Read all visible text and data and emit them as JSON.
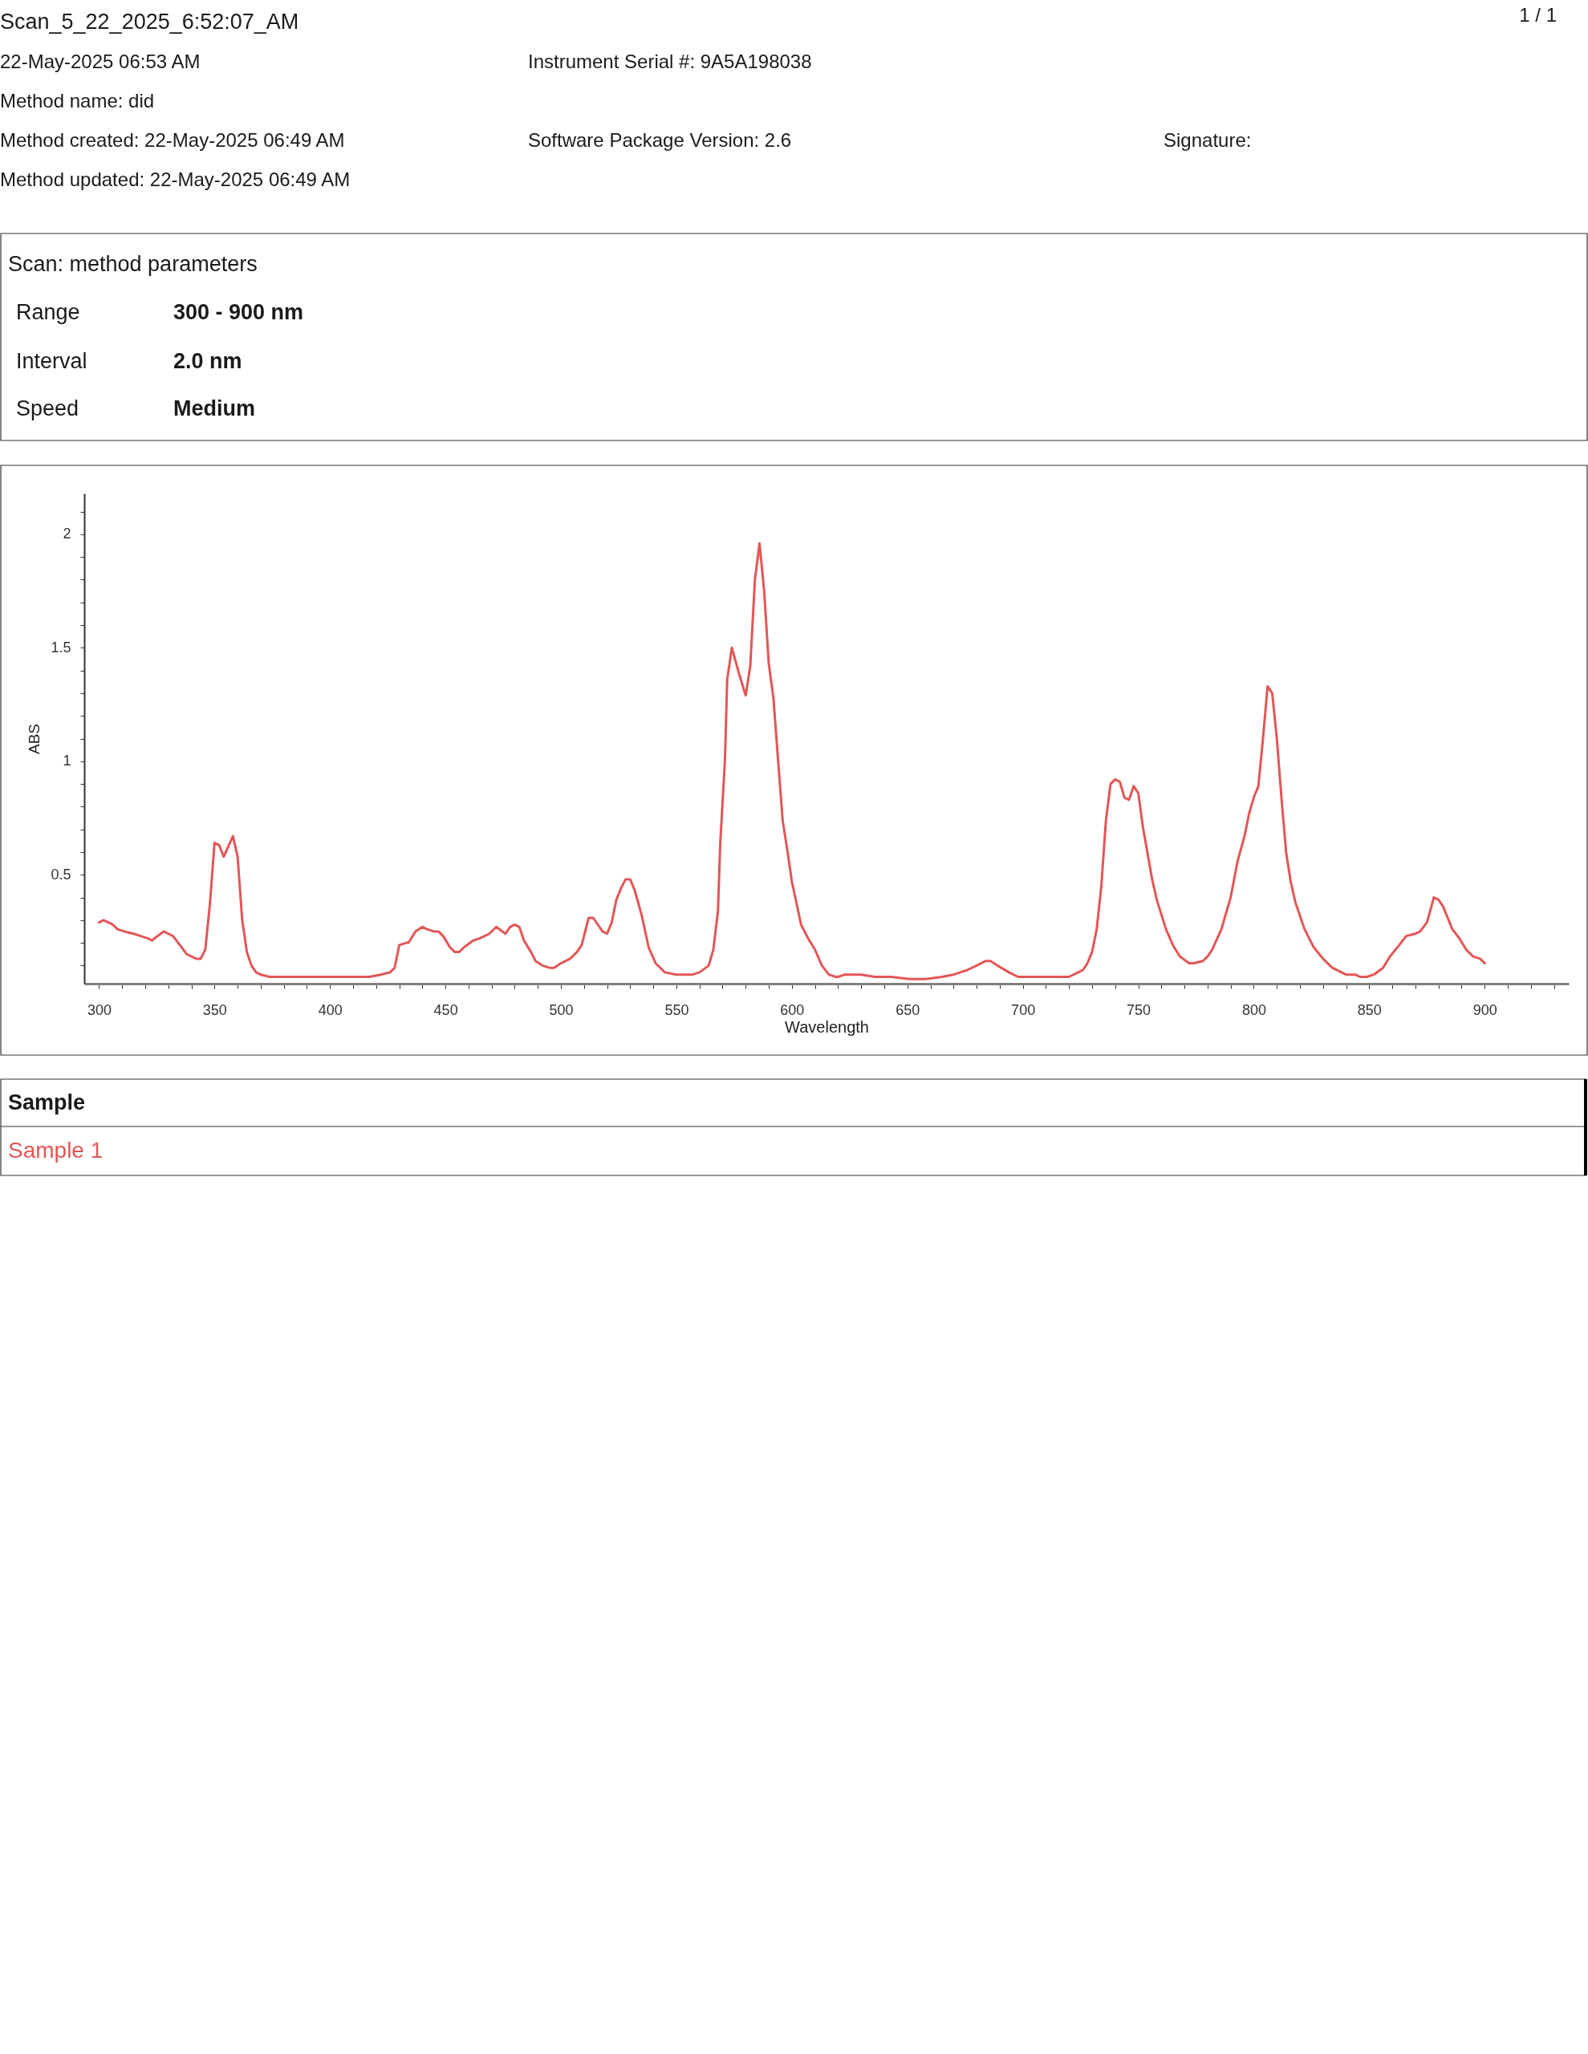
{
  "chart_data": {
    "type": "line",
    "title": "Scan_5_22_2025_6:52:07_AM",
    "xlabel": "Wavelength",
    "ylabel": "ABS",
    "legend_title": "Sample",
    "legend": "bottom",
    "annotations": [
      "1 / 1",
      "22-May-2025 06:53 AM",
      "Method name: did",
      "Method created: 22-May-2025 06:49 AM",
      "Method updated: 22-May-2025 06:49 AM",
      "Instrument Serial #: 9A5A198038",
      "Software Package Version: 2.6",
      "Signature:",
      "Scan: method parameters",
      "Range",
      "300 - 900 nm",
      "Interval",
      "2.0 nm",
      "Speed",
      "Medium"
    ],
    "x": [
      300,
      302,
      306,
      308,
      311,
      315,
      318,
      321,
      323,
      324,
      328,
      330,
      332,
      335,
      338,
      342,
      344,
      346,
      348,
      350,
      352,
      354,
      358,
      360,
      362,
      364,
      366,
      368,
      370,
      374,
      383,
      386,
      394,
      404,
      410,
      417,
      422,
      426,
      428,
      430,
      433,
      434,
      437,
      440,
      442,
      445,
      447,
      449,
      452,
      454,
      456,
      458,
      462,
      465,
      469,
      472,
      476,
      478,
      480,
      482,
      484,
      487,
      489,
      492,
      495,
      497,
      500,
      504,
      507,
      509,
      512,
      514,
      518,
      520,
      522,
      524,
      526,
      528,
      530,
      532,
      535,
      538,
      541,
      545,
      550,
      557,
      560,
      564,
      566,
      568,
      569,
      571,
      572,
      574,
      577,
      580,
      582,
      584,
      586,
      588,
      590,
      592,
      596,
      598,
      600,
      604,
      607,
      610,
      613,
      616,
      619,
      620,
      623,
      630,
      636,
      643,
      651,
      658,
      665,
      670,
      676,
      680,
      684,
      686,
      689,
      694,
      698,
      703,
      715,
      720,
      724,
      726,
      728,
      730,
      732,
      734,
      736,
      738,
      740,
      742,
      744,
      746,
      748,
      750,
      752,
      756,
      758,
      762,
      765,
      768,
      772,
      774,
      778,
      780,
      782,
      786,
      790,
      793,
      796,
      798,
      800,
      802,
      804,
      806,
      808,
      810,
      812,
      814,
      816,
      818,
      822,
      826,
      830,
      834,
      838,
      840,
      842,
      844,
      846,
      849,
      852,
      856,
      859,
      863,
      866,
      870,
      872,
      875,
      878,
      880,
      882,
      886,
      889,
      892,
      895,
      898,
      900
    ],
    "series": [
      {
        "name": "Sample 1",
        "color": "#e35656",
        "values": [
          0.29,
          0.3,
          0.28,
          0.26,
          0.25,
          0.24,
          0.23,
          0.22,
          0.21,
          0.22,
          0.25,
          0.24,
          0.23,
          0.19,
          0.15,
          0.13,
          0.13,
          0.17,
          0.37,
          0.64,
          0.63,
          0.58,
          0.67,
          0.58,
          0.3,
          0.16,
          0.1,
          0.07,
          0.06,
          0.05,
          0.05,
          0.05,
          0.05,
          0.05,
          0.05,
          0.05,
          0.06,
          0.07,
          0.09,
          0.19,
          0.2,
          0.2,
          0.25,
          0.27,
          0.26,
          0.25,
          0.25,
          0.23,
          0.18,
          0.16,
          0.16,
          0.18,
          0.21,
          0.22,
          0.24,
          0.27,
          0.24,
          0.27,
          0.28,
          0.27,
          0.21,
          0.16,
          0.12,
          0.1,
          0.09,
          0.09,
          0.11,
          0.13,
          0.16,
          0.19,
          0.31,
          0.31,
          0.25,
          0.24,
          0.29,
          0.39,
          0.44,
          0.48,
          0.48,
          0.43,
          0.32,
          0.18,
          0.11,
          0.07,
          0.06,
          0.06,
          0.07,
          0.1,
          0.17,
          0.34,
          0.64,
          1.0,
          1.36,
          1.5,
          1.39,
          1.29,
          1.42,
          1.8,
          1.96,
          1.75,
          1.43,
          1.28,
          0.74,
          0.61,
          0.47,
          0.28,
          0.22,
          0.17,
          0.1,
          0.06,
          0.05,
          0.05,
          0.06,
          0.06,
          0.05,
          0.05,
          0.04,
          0.04,
          0.05,
          0.06,
          0.08,
          0.1,
          0.12,
          0.12,
          0.1,
          0.07,
          0.05,
          0.05,
          0.05,
          0.05,
          0.07,
          0.08,
          0.11,
          0.16,
          0.26,
          0.45,
          0.74,
          0.9,
          0.92,
          0.91,
          0.84,
          0.83,
          0.89,
          0.86,
          0.71,
          0.48,
          0.39,
          0.26,
          0.19,
          0.14,
          0.11,
          0.11,
          0.12,
          0.14,
          0.17,
          0.26,
          0.4,
          0.56,
          0.67,
          0.77,
          0.84,
          0.89,
          1.1,
          1.33,
          1.3,
          1.1,
          0.84,
          0.6,
          0.47,
          0.38,
          0.26,
          0.18,
          0.13,
          0.09,
          0.07,
          0.06,
          0.06,
          0.06,
          0.05,
          0.05,
          0.06,
          0.09,
          0.14,
          0.19,
          0.23,
          0.24,
          0.25,
          0.29,
          0.4,
          0.39,
          0.36,
          0.26,
          0.22,
          0.17,
          0.14,
          0.13,
          0.11
        ]
      }
    ],
    "xlim": [
      293.6,
      936.4
    ],
    "ylim": [
      0.02,
      2.18
    ],
    "xticks": [
      300,
      {
        "value": 310,
        "label": null
      },
      {
        "value": 320,
        "label": null
      },
      {
        "value": 330,
        "label": null
      },
      {
        "value": 340,
        "label": null
      },
      350,
      {
        "value": 360,
        "label": null
      },
      {
        "value": 370,
        "label": null
      },
      {
        "value": 380,
        "label": null
      },
      {
        "value": 390,
        "label": null
      },
      400,
      {
        "value": 410,
        "label": null
      },
      {
        "value": 420,
        "label": null
      },
      {
        "value": 430,
        "label": null
      },
      {
        "value": 440,
        "label": null
      },
      450,
      {
        "value": 460,
        "label": null
      },
      {
        "value": 470,
        "label": null
      },
      {
        "value": 480,
        "label": null
      },
      {
        "value": 490,
        "label": null
      },
      500,
      {
        "value": 510,
        "label": null
      },
      {
        "value": 520,
        "label": null
      },
      {
        "value": 530,
        "label": null
      },
      {
        "value": 540,
        "label": null
      },
      550,
      {
        "value": 560,
        "label": null
      },
      {
        "value": 570,
        "label": null
      },
      {
        "value": 580,
        "label": null
      },
      {
        "value": 590,
        "label": null
      },
      600,
      {
        "value": 610,
        "label": null
      },
      {
        "value": 620,
        "label": null
      },
      {
        "value": 630,
        "label": null
      },
      {
        "value": 640,
        "label": null
      },
      650,
      {
        "value": 660,
        "label": null
      },
      {
        "value": 670,
        "label": null
      },
      {
        "value": 680,
        "label": null
      },
      {
        "value": 690,
        "label": null
      },
      700,
      {
        "value": 710,
        "label": null
      },
      {
        "value": 720,
        "label": null
      },
      {
        "value": 730,
        "label": null
      },
      {
        "value": 740,
        "label": null
      },
      750,
      {
        "value": 760,
        "label": null
      },
      {
        "value": 770,
        "label": null
      },
      {
        "value": 780,
        "label": null
      },
      {
        "value": 790,
        "label": null
      },
      800,
      {
        "value": 810,
        "label": null
      },
      {
        "value": 820,
        "label": null
      },
      {
        "value": 830,
        "label": null
      },
      {
        "value": 840,
        "label": null
      },
      850,
      {
        "value": 860,
        "label": null
      },
      {
        "value": 870,
        "label": null
      },
      {
        "value": 880,
        "label": null
      },
      {
        "value": 890,
        "label": null
      },
      900,
      {
        "value": 910,
        "label": null
      },
      {
        "value": 920,
        "label": null
      },
      {
        "value": 930,
        "label": null
      }
    ],
    "yticks": [
      {
        "value": 0.1,
        "label": null
      },
      {
        "value": 0.2,
        "label": null
      },
      {
        "value": 0.3,
        "label": null
      },
      {
        "value": 0.4,
        "label": null
      },
      0.5,
      {
        "value": 0.6,
        "label": null
      },
      {
        "value": 0.7,
        "label": null
      },
      {
        "value": 0.8,
        "label": null
      },
      {
        "value": 0.9,
        "label": null
      },
      1,
      {
        "value": 1.1,
        "label": null
      },
      {
        "value": 1.2,
        "label": null
      },
      {
        "value": 1.3,
        "label": null
      },
      {
        "value": 1.4,
        "label": null
      },
      1.5,
      {
        "value": 1.6,
        "label": null
      },
      {
        "value": 1.7,
        "label": null
      },
      {
        "value": 1.8,
        "label": null
      },
      {
        "value": 1.9,
        "label": null
      },
      2,
      {
        "value": 2.1,
        "label": null
      }
    ]
  }
}
